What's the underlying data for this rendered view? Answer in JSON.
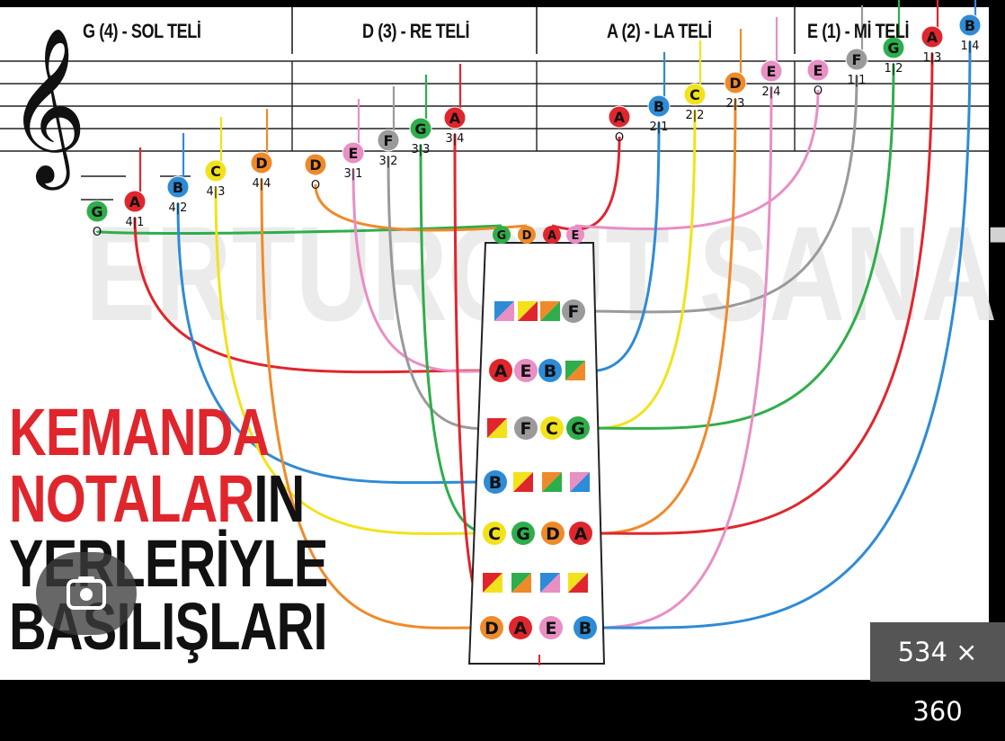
{
  "headers": [
    {
      "key": "g",
      "text": "G (4) - SOL TELİ"
    },
    {
      "key": "d",
      "text": "D (3) - RE TELİ"
    },
    {
      "key": "a",
      "text": "A (2) - LA TELİ"
    },
    {
      "key": "e",
      "text": "E (1) - Mİ TELİ"
    }
  ],
  "title": {
    "line1": "KEMANDA",
    "line2_red": "NOTALAR",
    "line2_black": "IN",
    "line3": "YERLERİYLE",
    "line4": "BASILIŞLARI"
  },
  "watermark": "ERTURGUT SANAT",
  "image_size_badge": "534 × 360",
  "clef_symbol": "𝄞",
  "open_string_marker": "O",
  "colors": {
    "G": "#2eae4a",
    "A": "#e0262d",
    "B": "#2e8bd6",
    "C": "#f2e21b",
    "D": "#ef8a2a",
    "E": "#e88fc4",
    "F": "#9a9a9a"
  },
  "notes": [
    {
      "id": "g0",
      "letter": "G",
      "finger": "O"
    },
    {
      "id": "g1",
      "letter": "A",
      "finger": "4|1"
    },
    {
      "id": "g2",
      "letter": "B",
      "finger": "4|2"
    },
    {
      "id": "g3",
      "letter": "C",
      "finger": "4|3"
    },
    {
      "id": "g4",
      "letter": "D",
      "finger": "4|4"
    },
    {
      "id": "d0",
      "letter": "D",
      "finger": "O"
    },
    {
      "id": "d1",
      "letter": "E",
      "finger": "3|1"
    },
    {
      "id": "d2",
      "letter": "F",
      "finger": "3|2"
    },
    {
      "id": "d3",
      "letter": "G",
      "finger": "3|3"
    },
    {
      "id": "d4",
      "letter": "A",
      "finger": "3|4"
    },
    {
      "id": "a0",
      "letter": "A",
      "finger": "O"
    },
    {
      "id": "a1",
      "letter": "B",
      "finger": "2|1"
    },
    {
      "id": "a2",
      "letter": "C",
      "finger": "2|2"
    },
    {
      "id": "a3",
      "letter": "D",
      "finger": "2|3"
    },
    {
      "id": "a4",
      "letter": "E",
      "finger": "2|4"
    },
    {
      "id": "e0",
      "letter": "E",
      "finger": "O"
    },
    {
      "id": "e1",
      "letter": "F",
      "finger": "1|1"
    },
    {
      "id": "e2",
      "letter": "G",
      "finger": "1|2"
    },
    {
      "id": "e3",
      "letter": "A",
      "finger": "1|3"
    },
    {
      "id": "e4",
      "letter": "B",
      "finger": "1|4"
    }
  ],
  "fingerboard_rows": [
    {
      "row": "open",
      "cells": [
        "G",
        "D",
        "A",
        "E"
      ]
    },
    {
      "row": "f1",
      "cells": [
        "*",
        "*",
        "*",
        "F"
      ]
    },
    {
      "row": "f2",
      "cells": [
        "A",
        "E",
        "B",
        "*"
      ]
    },
    {
      "row": "f3",
      "cells": [
        "*",
        "F",
        "C",
        "G"
      ]
    },
    {
      "row": "f4",
      "cells": [
        "B",
        "*",
        "*",
        "*"
      ]
    },
    {
      "row": "f5",
      "cells": [
        "C",
        "G",
        "D",
        "A"
      ]
    },
    {
      "row": "f6",
      "cells": [
        "*",
        "*",
        "*",
        "*"
      ]
    },
    {
      "row": "f7",
      "cells": [
        "D",
        "A",
        "E",
        "B"
      ]
    }
  ],
  "connections": [
    {
      "from": "g0",
      "to": "open.0"
    },
    {
      "from": "d0",
      "to": "open.1"
    },
    {
      "from": "a0",
      "to": "open.2"
    },
    {
      "from": "e0",
      "to": "open.3"
    },
    {
      "from": "e1",
      "to": "f1.3"
    },
    {
      "from": "g1",
      "to": "f2.0"
    },
    {
      "from": "d1",
      "to": "f2.1"
    },
    {
      "from": "a1",
      "to": "f2.2"
    },
    {
      "from": "d2",
      "to": "f3.1"
    },
    {
      "from": "a2",
      "to": "f3.2"
    },
    {
      "from": "e2",
      "to": "f3.3"
    },
    {
      "from": "g2",
      "to": "f4.0"
    },
    {
      "from": "g3",
      "to": "f5.0"
    },
    {
      "from": "d3",
      "to": "f5.1"
    },
    {
      "from": "a3",
      "to": "f5.2"
    },
    {
      "from": "e3",
      "to": "f5.3"
    },
    {
      "from": "g4",
      "to": "f7.0"
    },
    {
      "from": "d4",
      "to": "f7.1"
    },
    {
      "from": "a4",
      "to": "f7.2"
    },
    {
      "from": "e4",
      "to": "f7.3"
    }
  ]
}
